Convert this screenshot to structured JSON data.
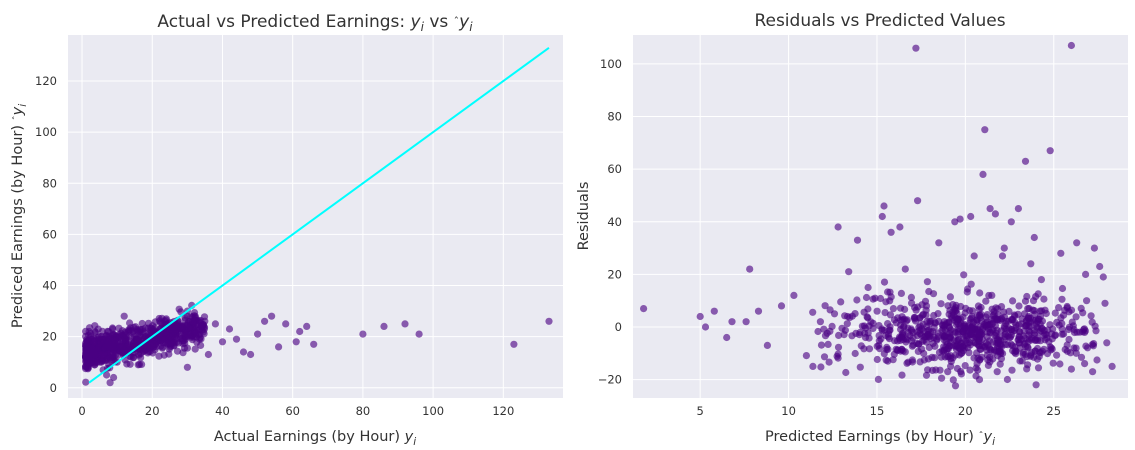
{
  "chart_data": [
    {
      "type": "scatter",
      "title": "Actual vs Predicted Earnings: y_i vs ŷ_i",
      "title_main": "Actual vs Predicted Earnings: ",
      "title_y": "y",
      "title_y_sub": "i",
      "title_vs": " vs ",
      "title_yhat": "y",
      "title_yhat_sub": "i",
      "xlabel": "Actual Earnings (by Hour) y_i",
      "xlabel_main": "Actual Earnings (by Hour) ",
      "xlabel_var": "y",
      "xlabel_sub": "i",
      "ylabel": "Prediced Earnings (by Hour) ŷ_i",
      "ylabel_main": "Prediced Earnings (by Hour) ",
      "ylabel_var": "y",
      "ylabel_sub": "i",
      "xlim": [
        -4,
        137
      ],
      "ylim": [
        -4,
        138
      ],
      "xticks": [
        0,
        20,
        40,
        60,
        80,
        100,
        120
      ],
      "yticks": [
        0,
        20,
        40,
        60,
        80,
        100,
        120
      ],
      "grid": true,
      "marker_color": "#4b0082",
      "line_color": "#00ffff",
      "reference_line": {
        "x": [
          2,
          133
        ],
        "y": [
          2,
          133
        ]
      },
      "points": [
        [
          7,
          5
        ],
        [
          8,
          2
        ],
        [
          6,
          7
        ],
        [
          9,
          4
        ],
        [
          30,
          8
        ],
        [
          16,
          9
        ],
        [
          4,
          10
        ],
        [
          10,
          10
        ],
        [
          1,
          12
        ],
        [
          14,
          12
        ],
        [
          36,
          13
        ],
        [
          46,
          14
        ],
        [
          48,
          13
        ],
        [
          56,
          16
        ],
        [
          66,
          17
        ],
        [
          123,
          17
        ],
        [
          2,
          22
        ],
        [
          18,
          20
        ],
        [
          22,
          21
        ],
        [
          26,
          22
        ],
        [
          34,
          24
        ],
        [
          42,
          23
        ],
        [
          52,
          26
        ],
        [
          58,
          25
        ],
        [
          62,
          22
        ],
        [
          64,
          24
        ],
        [
          80,
          21
        ],
        [
          86,
          24
        ],
        [
          92,
          25
        ],
        [
          96,
          21
        ],
        [
          133,
          26
        ],
        [
          50,
          21
        ],
        [
          40,
          18
        ],
        [
          44,
          19
        ],
        [
          54,
          28
        ],
        [
          61,
          18
        ],
        [
          3,
          15
        ],
        [
          5,
          20
        ],
        [
          12,
          28
        ],
        [
          24,
          27
        ],
        [
          30,
          30
        ],
        [
          38,
          25
        ]
      ],
      "cloud": {
        "x_range": [
          1,
          35
        ],
        "y_center": 19,
        "y_spread": 5,
        "count": 750
      }
    },
    {
      "type": "scatter",
      "title": "Residuals vs Predicted Values",
      "xlabel": "Predicted Earnings (by Hour) ŷ_i",
      "xlabel_main": "Predicted Earnings (by Hour) ",
      "xlabel_var": "y",
      "xlabel_sub": "i",
      "ylabel": "Residuals",
      "xlim": [
        1.2,
        29.2
      ],
      "ylim": [
        -27,
        111
      ],
      "xticks": [
        5,
        10,
        15,
        20,
        25
      ],
      "yticks": [
        -20,
        0,
        20,
        40,
        60,
        80,
        100
      ],
      "grid": true,
      "marker_color": "#4b0082",
      "points": [
        [
          1.8,
          7
        ],
        [
          5.0,
          4
        ],
        [
          5.3,
          0
        ],
        [
          5.8,
          6
        ],
        [
          6.5,
          -4
        ],
        [
          6.8,
          2
        ],
        [
          7.6,
          2
        ],
        [
          7.8,
          22
        ],
        [
          8.3,
          6
        ],
        [
          8.8,
          -7
        ],
        [
          9.6,
          8
        ],
        [
          10.3,
          12
        ],
        [
          11.8,
          2
        ],
        [
          12.6,
          5
        ],
        [
          12.8,
          38
        ],
        [
          13.4,
          21
        ],
        [
          13.9,
          33
        ],
        [
          14.5,
          15
        ],
        [
          15.3,
          42
        ],
        [
          15.4,
          46
        ],
        [
          15.8,
          36
        ],
        [
          16.3,
          38
        ],
        [
          16.6,
          22
        ],
        [
          17.2,
          106
        ],
        [
          17.3,
          48
        ],
        [
          17.8,
          8
        ],
        [
          18.5,
          32
        ],
        [
          19.4,
          40
        ],
        [
          19.7,
          41
        ],
        [
          20.3,
          42
        ],
        [
          20.5,
          27
        ],
        [
          21.0,
          58
        ],
        [
          21.1,
          75
        ],
        [
          21.4,
          45
        ],
        [
          21.7,
          43
        ],
        [
          22.1,
          27
        ],
        [
          22.6,
          40
        ],
        [
          23.0,
          45
        ],
        [
          23.4,
          63
        ],
        [
          23.7,
          24
        ],
        [
          24.3,
          18
        ],
        [
          24.8,
          67
        ],
        [
          25.4,
          28
        ],
        [
          26.0,
          107
        ],
        [
          26.3,
          32
        ],
        [
          26.8,
          20
        ],
        [
          27.3,
          30
        ],
        [
          27.6,
          23
        ],
        [
          27.8,
          19
        ],
        [
          28.3,
          -15
        ],
        [
          27.2,
          -17
        ],
        [
          24.0,
          -22
        ],
        [
          21.8,
          -17
        ],
        [
          20.8,
          -20
        ],
        [
          19.0,
          -17
        ],
        [
          26.0,
          -16
        ],
        [
          28.0,
          -6
        ],
        [
          27.9,
          9
        ],
        [
          22.2,
          30
        ],
        [
          23.9,
          34
        ]
      ],
      "cloud": {
        "x_range": [
          11,
          27.5
        ],
        "x_center": 20,
        "y_center": -3,
        "y_spread": 6,
        "count": 760
      }
    }
  ]
}
